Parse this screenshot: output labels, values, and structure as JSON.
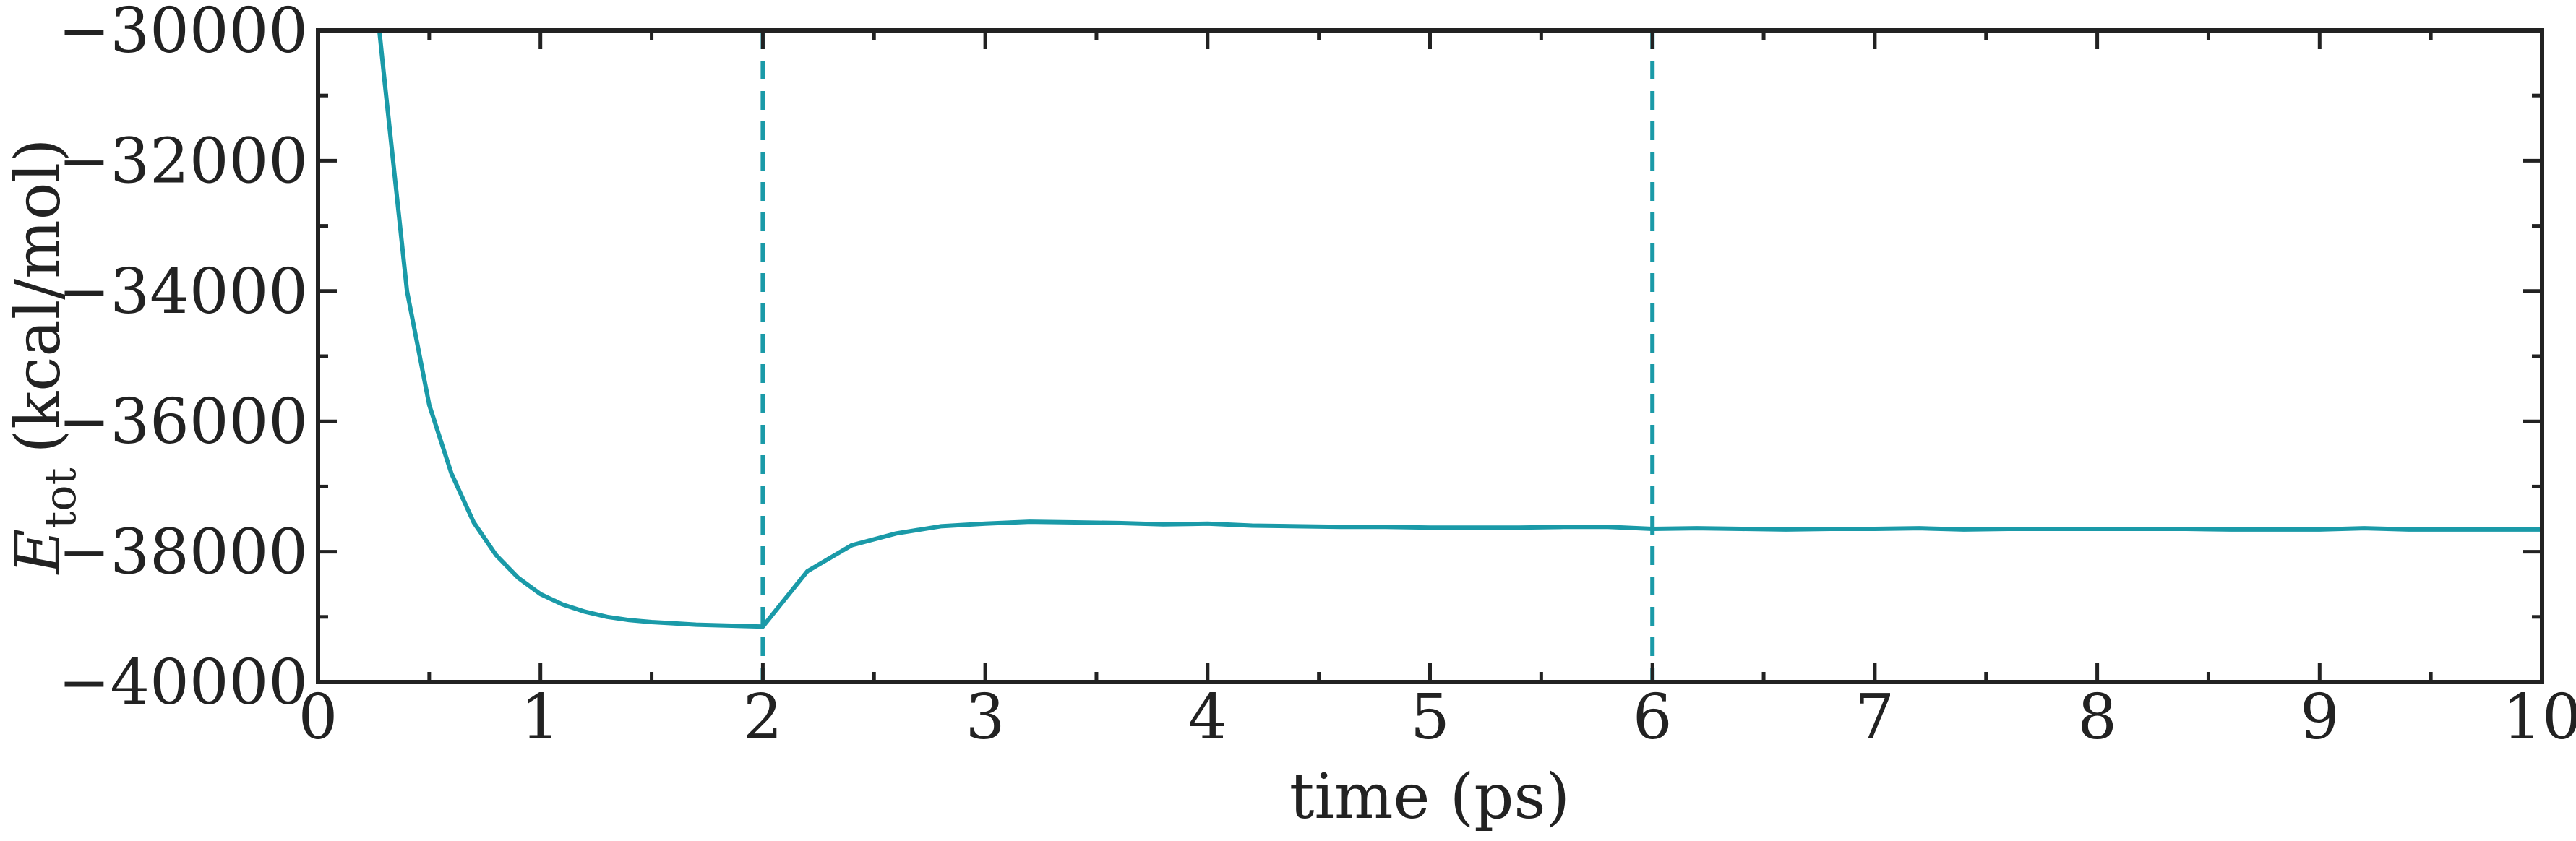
{
  "chart_data": {
    "type": "line",
    "xlabel": "time (ps)",
    "ylabel": {
      "main": "E",
      "sub": "tot",
      "unit": "(kcal/mol)"
    },
    "xlim": [
      0,
      10
    ],
    "ylim": [
      -40000,
      -30000
    ],
    "x_ticks": [
      0,
      1,
      2,
      3,
      4,
      5,
      6,
      7,
      8,
      9,
      10
    ],
    "x_tick_labels": [
      "0",
      "1",
      "2",
      "3",
      "4",
      "5",
      "6",
      "7",
      "8",
      "9",
      "10"
    ],
    "y_ticks": [
      -30000,
      -32000,
      -34000,
      -36000,
      -38000,
      -40000
    ],
    "y_tick_labels": [
      "−30000",
      "−32000",
      "−34000",
      "−36000",
      "−38000",
      "−40000"
    ],
    "grid": false,
    "vlines": [
      {
        "x": 2,
        "style": "dashed",
        "color": "#1a9aa8"
      },
      {
        "x": 6,
        "style": "dashed",
        "color": "#1a9aa8"
      }
    ],
    "series": [
      {
        "color": "#1a9aa8",
        "x": [
          0.2,
          0.3,
          0.4,
          0.5,
          0.6,
          0.7,
          0.8,
          0.9,
          1.0,
          1.1,
          1.2,
          1.3,
          1.4,
          1.5,
          1.6,
          1.7,
          1.8,
          2.0,
          2.2,
          2.4,
          2.6,
          2.8,
          3.0,
          3.2,
          3.4,
          3.6,
          3.8,
          4.0,
          4.2,
          4.4,
          4.6,
          4.8,
          5.0,
          5.2,
          5.4,
          5.6,
          5.8,
          6.0,
          6.2,
          6.4,
          6.6,
          6.8,
          7.0,
          7.2,
          7.4,
          7.6,
          7.8,
          8.0,
          8.2,
          8.4,
          8.6,
          8.8,
          9.0,
          9.2,
          9.4,
          9.6,
          9.8,
          10.0
        ],
        "values": [
          -27500,
          -30800,
          -34000,
          -35750,
          -36800,
          -37550,
          -38050,
          -38400,
          -38650,
          -38810,
          -38920,
          -39000,
          -39050,
          -39080,
          -39100,
          -39120,
          -39130,
          -39150,
          -38300,
          -37900,
          -37720,
          -37610,
          -37570,
          -37540,
          -37550,
          -37560,
          -37580,
          -37570,
          -37600,
          -37610,
          -37620,
          -37620,
          -37630,
          -37630,
          -37630,
          -37620,
          -37620,
          -37650,
          -37640,
          -37650,
          -37660,
          -37650,
          -37650,
          -37640,
          -37660,
          -37650,
          -37650,
          -37650,
          -37650,
          -37650,
          -37660,
          -37660,
          -37660,
          -37640,
          -37660,
          -37660,
          -37660,
          -37660
        ]
      }
    ]
  }
}
